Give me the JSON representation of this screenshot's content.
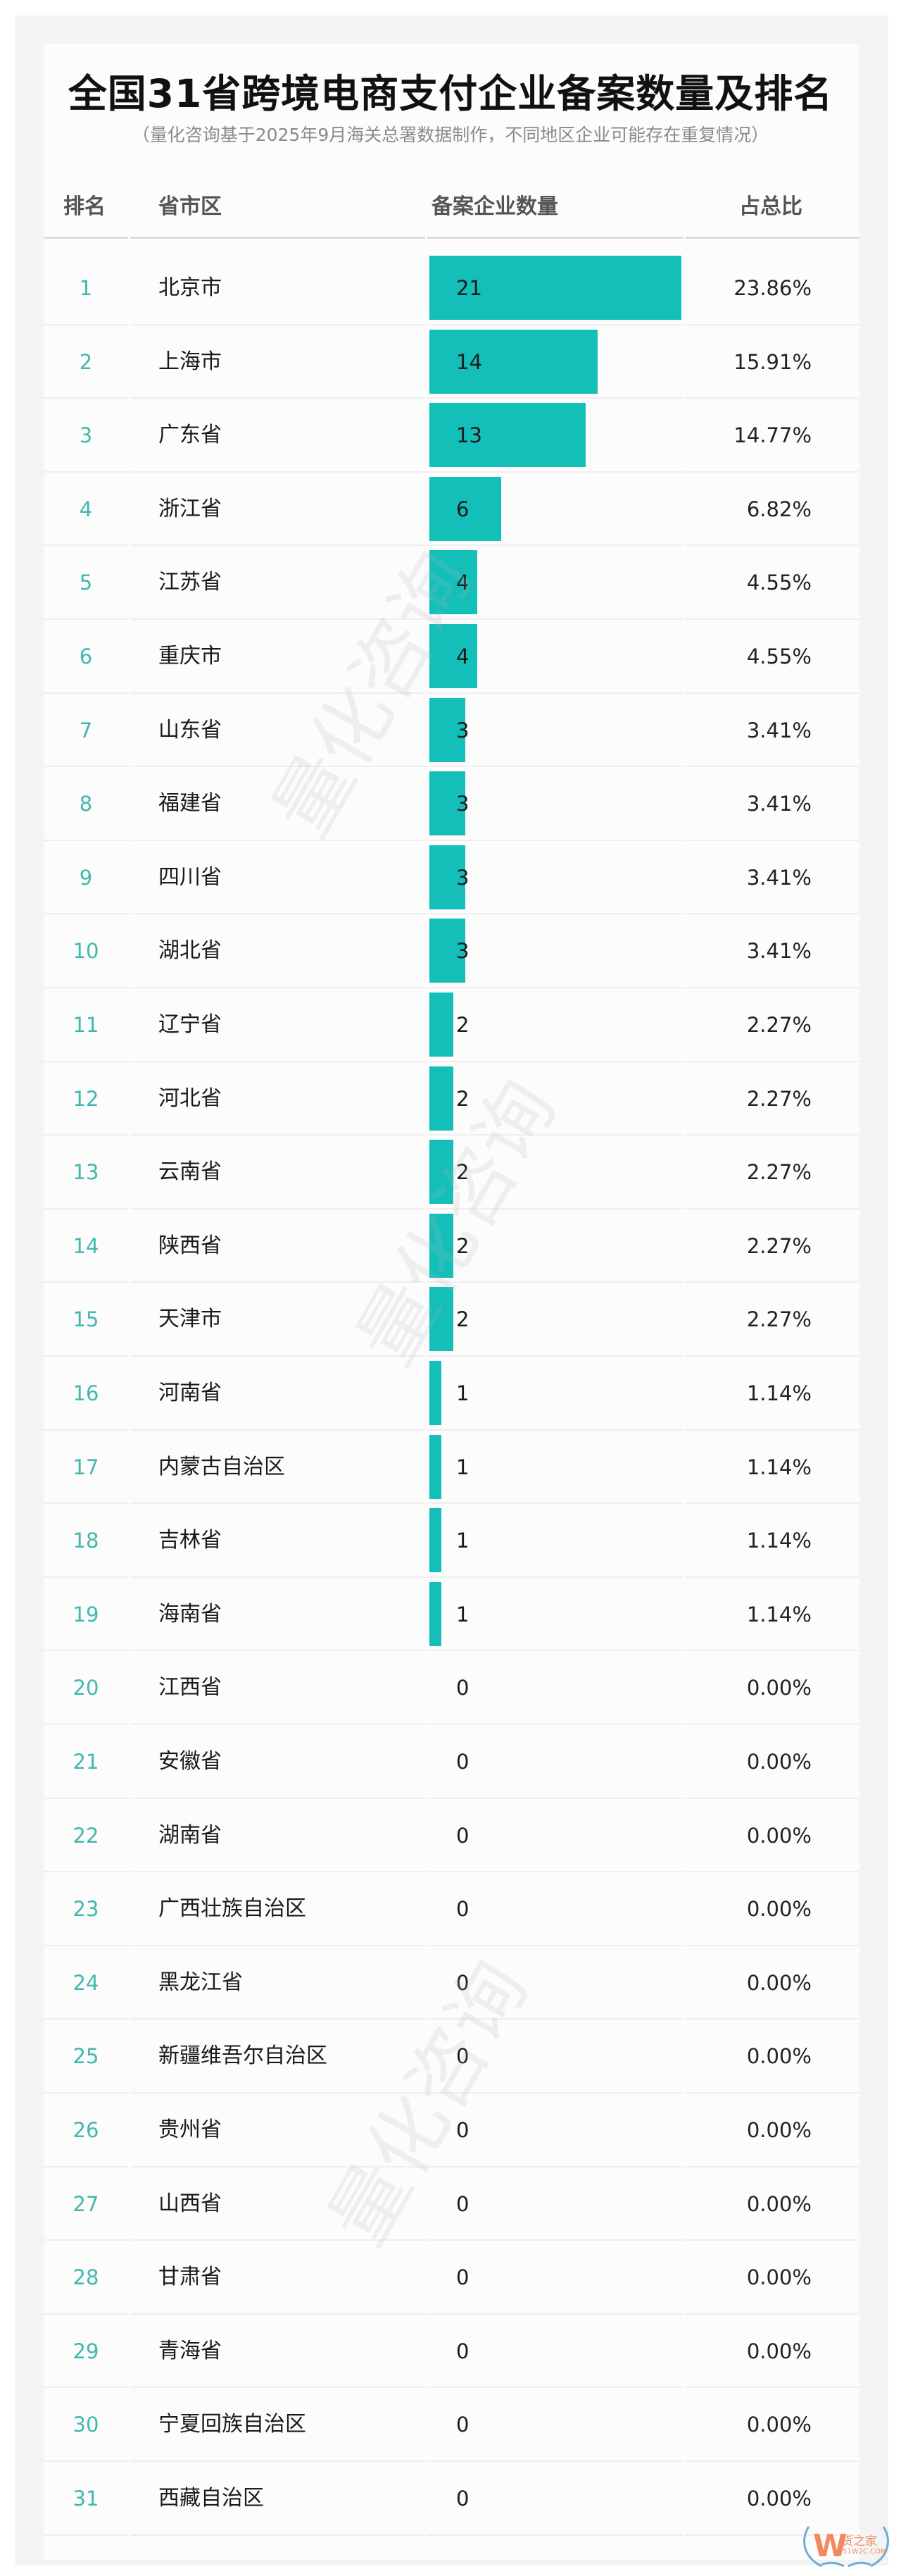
{
  "chart_data": {
    "type": "table",
    "title": "全国31省跨境电商支付企业备案数量及排名",
    "subtitle": "（量化咨询基于2025年9月海关总署数据制作，不同地区企业可能存在重复情况）",
    "columns": [
      "排名",
      "省市区",
      "备案企业数量",
      "占总比"
    ],
    "rows": [
      {
        "rank": "1",
        "region": "北京市",
        "count": 21,
        "share": "23.86%"
      },
      {
        "rank": "2",
        "region": "上海市",
        "count": 14,
        "share": "15.91%"
      },
      {
        "rank": "3",
        "region": "广东省",
        "count": 13,
        "share": "14.77%"
      },
      {
        "rank": "4",
        "region": "浙江省",
        "count": 6,
        "share": "6.82%"
      },
      {
        "rank": "5",
        "region": "江苏省",
        "count": 4,
        "share": "4.55%"
      },
      {
        "rank": "6",
        "region": "重庆市",
        "count": 4,
        "share": "4.55%"
      },
      {
        "rank": "7",
        "region": "山东省",
        "count": 3,
        "share": "3.41%"
      },
      {
        "rank": "8",
        "region": "福建省",
        "count": 3,
        "share": "3.41%"
      },
      {
        "rank": "9",
        "region": "四川省",
        "count": 3,
        "share": "3.41%"
      },
      {
        "rank": "10",
        "region": "湖北省",
        "count": 3,
        "share": "3.41%"
      },
      {
        "rank": "11",
        "region": "辽宁省",
        "count": 2,
        "share": "2.27%"
      },
      {
        "rank": "12",
        "region": "河北省",
        "count": 2,
        "share": "2.27%"
      },
      {
        "rank": "13",
        "region": "云南省",
        "count": 2,
        "share": "2.27%"
      },
      {
        "rank": "14",
        "region": "陕西省",
        "count": 2,
        "share": "2.27%"
      },
      {
        "rank": "15",
        "region": "天津市",
        "count": 2,
        "share": "2.27%"
      },
      {
        "rank": "16",
        "region": "河南省",
        "count": 1,
        "share": "1.14%"
      },
      {
        "rank": "17",
        "region": "内蒙古自治区",
        "count": 1,
        "share": "1.14%"
      },
      {
        "rank": "18",
        "region": "吉林省",
        "count": 1,
        "share": "1.14%"
      },
      {
        "rank": "19",
        "region": "海南省",
        "count": 1,
        "share": "1.14%"
      },
      {
        "rank": "20",
        "region": "江西省",
        "count": 0,
        "share": "0.00%"
      },
      {
        "rank": "21",
        "region": "安徽省",
        "count": 0,
        "share": "0.00%"
      },
      {
        "rank": "22",
        "region": "湖南省",
        "count": 0,
        "share": "0.00%"
      },
      {
        "rank": "23",
        "region": "广西壮族自治区",
        "count": 0,
        "share": "0.00%"
      },
      {
        "rank": "24",
        "region": "黑龙江省",
        "count": 0,
        "share": "0.00%"
      },
      {
        "rank": "25",
        "region": "新疆维吾尔自治区",
        "count": 0,
        "share": "0.00%"
      },
      {
        "rank": "26",
        "region": "贵州省",
        "count": 0,
        "share": "0.00%"
      },
      {
        "rank": "27",
        "region": "山西省",
        "count": 0,
        "share": "0.00%"
      },
      {
        "rank": "28",
        "region": "甘肃省",
        "count": 0,
        "share": "0.00%"
      },
      {
        "rank": "29",
        "region": "青海省",
        "count": 0,
        "share": "0.00%"
      },
      {
        "rank": "30",
        "region": "宁夏回族自治区",
        "count": 0,
        "share": "0.00%"
      },
      {
        "rank": "31",
        "region": "西藏自治区",
        "count": 0,
        "share": "0.00%"
      }
    ],
    "bar_max": 21,
    "grid": false
  },
  "colors": {
    "bar": "#14bfba",
    "rank": "#3fb8ad",
    "title": "#111111",
    "subtitle": "#8a8a8a"
  },
  "watermark": "量化咨询",
  "logo": {
    "mark": "W",
    "name": "货之家",
    "site": "51W2C.COM"
  }
}
